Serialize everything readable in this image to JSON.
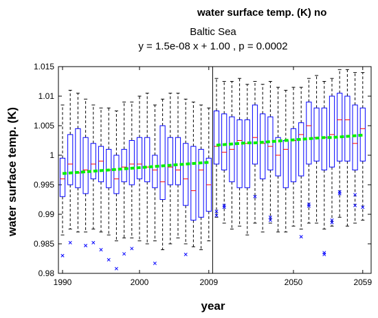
{
  "chart_data": {
    "type": "boxplot",
    "suptitle": "water surface temp. (K) no",
    "title": "Baltic Sea",
    "subtitle": "y = 1.5e-08 x + 1.00 , p = 0.0002",
    "xlabel": "year",
    "ylabel": "water surface temp. (K)",
    "ylim": [
      0.98,
      1.015
    ],
    "yticks": [
      "0.98",
      "0.985",
      "0.99",
      "0.995",
      "1",
      "1.005",
      "1.01",
      "1.015"
    ],
    "xtick_labels": [
      "1990",
      "2000",
      "2009",
      "2050",
      "2059"
    ],
    "grid": false,
    "colors": {
      "box": "#0000ff",
      "median": "#ff0000",
      "whisker": "#000000",
      "outlier": "#0000ff",
      "trend": "#00ee00"
    },
    "series": [
      {
        "period": "1990-2009",
        "years": [
          1990,
          1991,
          1992,
          1993,
          1994,
          1995,
          1996,
          1997,
          1998,
          1999,
          2000,
          2001,
          2002,
          2003,
          2004,
          2005,
          2006,
          2007,
          2008,
          2009
        ],
        "q1": [
          0.993,
          0.995,
          0.9945,
          0.9935,
          0.996,
          0.9955,
          0.9945,
          0.9935,
          0.9955,
          0.995,
          0.996,
          0.9955,
          0.9945,
          0.9925,
          0.995,
          0.995,
          0.9915,
          0.989,
          0.9895,
          0.9905
        ],
        "median": [
          0.996,
          0.9985,
          0.997,
          0.9975,
          0.9985,
          0.999,
          0.9975,
          0.996,
          0.998,
          0.9985,
          0.9985,
          0.998,
          0.9975,
          0.9955,
          0.998,
          0.9975,
          0.996,
          0.994,
          0.9975,
          0.995
        ],
        "q3": [
          0.9995,
          1.0035,
          1.0045,
          1.003,
          1.002,
          1.0015,
          1.001,
          1.0,
          1.001,
          1.0025,
          1.003,
          1.003,
          1.0,
          1.005,
          1.003,
          1.003,
          1.002,
          1.0015,
          1.001,
          0.9995
        ],
        "whisker_low": [
          0.9865,
          0.9875,
          0.987,
          0.987,
          0.9875,
          0.987,
          0.9865,
          0.9855,
          0.986,
          0.986,
          0.9855,
          0.985,
          0.9855,
          0.984,
          0.985,
          0.986,
          0.985,
          0.9845,
          0.984,
          0.9855
        ],
        "whisker_high": [
          1.0085,
          1.011,
          1.0105,
          1.0095,
          1.0085,
          1.008,
          1.008,
          1.0075,
          1.009,
          1.009,
          1.01,
          1.0105,
          1.0085,
          1.0095,
          1.0105,
          1.0105,
          1.0095,
          1.009,
          1.0085,
          1.008
        ],
        "outliers": [
          [
            0.983
          ],
          [
            0.9852
          ],
          [],
          [
            0.9847
          ],
          [
            0.9852
          ],
          [
            0.984
          ],
          [
            0.9823
          ],
          [
            0.9808
          ],
          [
            0.9833
          ],
          [
            0.9842
          ],
          [],
          [],
          [
            0.9817
          ],
          [],
          [],
          [],
          [
            0.9832
          ],
          [],
          [],
          []
        ],
        "trend": [
          0.9969,
          0.997,
          0.9971,
          0.9972,
          0.9973,
          0.9974,
          0.9975,
          0.9976,
          0.9977,
          0.9978,
          0.9979,
          0.998,
          0.9981,
          0.9982,
          0.9983,
          0.9984,
          0.9985,
          0.9986,
          0.9987,
          0.9988
        ]
      },
      {
        "period": "2040-2059",
        "years": [
          2040,
          2041,
          2042,
          2043,
          2044,
          2045,
          2046,
          2047,
          2048,
          2049,
          2050,
          2051,
          2052,
          2053,
          2054,
          2055,
          2056,
          2057,
          2058,
          2059
        ],
        "q1": [
          0.9985,
          0.9975,
          0.9955,
          0.9945,
          0.9945,
          0.9985,
          0.996,
          0.9975,
          0.9965,
          0.9945,
          0.9955,
          0.9965,
          0.9985,
          0.999,
          0.9975,
          0.998,
          0.999,
          0.999,
          0.9975,
          0.999
        ],
        "median": [
          1.0015,
          1.0005,
          1.001,
          1.0025,
          1.002,
          1.003,
          1.002,
          1.0015,
          1.0,
          1.001,
          1.0025,
          1.0035,
          1.005,
          1.003,
          1.003,
          1.0035,
          1.006,
          1.006,
          1.002,
          1.0045
        ],
        "q3": [
          1.0075,
          1.007,
          1.0065,
          1.006,
          1.006,
          1.0085,
          1.007,
          1.0065,
          1.003,
          1.0025,
          1.0045,
          1.0055,
          1.009,
          1.008,
          1.008,
          1.01,
          1.0105,
          1.01,
          1.0085,
          1.008
        ],
        "whisker_low": [
          0.9895,
          0.9885,
          0.9875,
          0.988,
          0.9865,
          0.9885,
          0.987,
          0.9885,
          0.987,
          0.987,
          0.988,
          0.9875,
          0.9885,
          0.9885,
          0.9875,
          0.988,
          0.9895,
          0.988,
          0.9885,
          0.989
        ],
        "whisker_high": [
          1.013,
          1.0125,
          1.0125,
          1.013,
          1.012,
          1.0125,
          1.012,
          1.0125,
          1.0115,
          1.011,
          1.0115,
          1.0115,
          1.013,
          1.0135,
          1.0125,
          1.013,
          1.0145,
          1.0145,
          1.014,
          1.014
        ],
        "outliers": [
          [
            0.9905,
            0.9898
          ],
          [
            0.9915,
            0.9912
          ],
          [],
          [],
          [],
          [
            0.993
          ],
          [],
          [
            0.9895,
            0.989
          ],
          [],
          [],
          [],
          [
            0.9862
          ],
          [
            0.9917,
            0.9914
          ],
          [],
          [
            0.9835,
            0.9832
          ],
          [
            0.989,
            0.9886
          ],
          [
            0.9938,
            0.9935
          ],
          [],
          [
            0.9933,
            0.9915
          ],
          [
            0.9912
          ]
        ],
        "trend": [
          1.0017,
          1.0018,
          1.0019,
          1.002,
          1.0021,
          1.0021,
          1.0022,
          1.0023,
          1.0024,
          1.0025,
          1.0026,
          1.0027,
          1.0028,
          1.0029,
          1.003,
          1.003,
          1.0031,
          1.0032,
          1.0033,
          1.0034
        ]
      }
    ]
  }
}
